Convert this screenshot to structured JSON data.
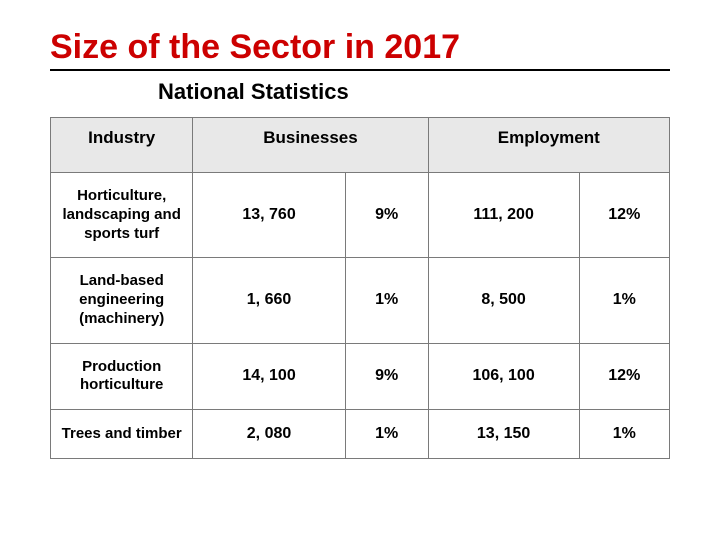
{
  "title": "Size of the Sector in 2017",
  "subtitle": "National Statistics",
  "table": {
    "headers": {
      "industry": "Industry",
      "businesses": "Businesses",
      "employment": "Employment"
    },
    "rows": [
      {
        "industry": "Horticulture, landscaping and sports turf",
        "businesses_count": "13, 760",
        "businesses_pct": "9%",
        "employment_count": "111, 200",
        "employment_pct": "12%"
      },
      {
        "industry": "Land-based engineering (machinery)",
        "businesses_count": "1, 660",
        "businesses_pct": "1%",
        "employment_count": "8, 500",
        "employment_pct": "1%"
      },
      {
        "industry": "Production horticulture",
        "businesses_count": "14, 100",
        "businesses_pct": "9%",
        "employment_count": "106, 100",
        "employment_pct": "12%"
      },
      {
        "industry": "Trees and timber",
        "businesses_count": "2, 080",
        "businesses_pct": "1%",
        "employment_count": "13, 150",
        "employment_pct": "1%"
      }
    ]
  },
  "colors": {
    "title_color": "#cc0000",
    "underline_color": "#000000",
    "header_bg": "#e8e8e8",
    "cell_bg": "#ffffff",
    "border_color": "#7a7a7a",
    "text_color": "#000000"
  },
  "typography": {
    "title_fontsize": 34,
    "subtitle_fontsize": 22,
    "header_fontsize": 17,
    "cell_fontsize": 16
  }
}
